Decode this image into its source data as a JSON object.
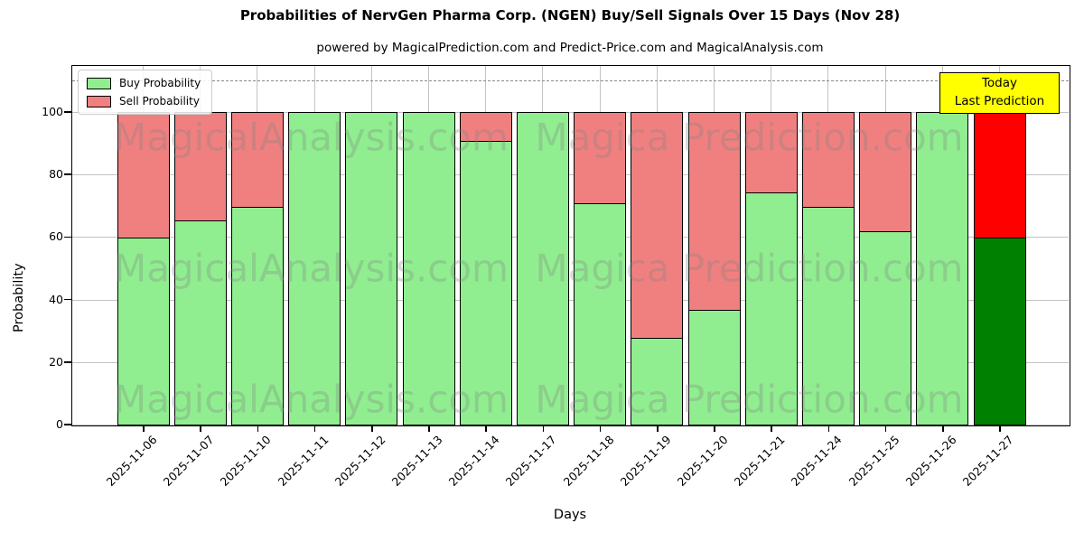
{
  "chart_data": {
    "type": "bar",
    "stacked": true,
    "title": "Probabilities of NervGen Pharma Corp. (NGEN) Buy/Sell Signals Over 15 Days (Nov 28)",
    "subtitle": "powered by MagicalPrediction.com and Predict-Price.com and MagicalAnalysis.com",
    "xlabel": "Days",
    "ylabel": "Probability",
    "ylim": [
      0,
      114.7
    ],
    "yticks": [
      0,
      20,
      40,
      60,
      80,
      100
    ],
    "dashed_line_y": 110,
    "grid": true,
    "legend_position": "upper left",
    "categories": [
      "2025-11-06",
      "2025-11-07",
      "2025-11-10",
      "2025-11-11",
      "2025-11-12",
      "2025-11-13",
      "2025-11-14",
      "2025-11-17",
      "2025-11-18",
      "2025-11-19",
      "2025-11-20",
      "2025-11-21",
      "2025-11-24",
      "2025-11-25",
      "2025-11-26",
      "2025-11-27"
    ],
    "series": [
      {
        "name": "Buy Probability",
        "values": [
          60,
          65.5,
          70,
          100,
          100,
          100,
          91,
          100,
          71,
          28,
          37,
          74.5,
          70,
          62,
          100,
          60
        ]
      },
      {
        "name": "Sell Probability",
        "values": [
          40,
          34.5,
          30,
          0,
          0,
          0,
          9,
          0,
          29,
          72,
          63,
          25.5,
          30,
          38,
          0,
          40
        ]
      }
    ],
    "last_bar_highlight": "Today / Last Prediction bar uses dark green and bright red"
  },
  "legend": {
    "items": [
      {
        "label": "Buy Probability",
        "color": "#90EE90"
      },
      {
        "label": "Sell Probability",
        "color": "#F08080"
      }
    ]
  },
  "annotation_box": {
    "line1": "Today",
    "line2": "Last Prediction",
    "bg": "#FFFF00"
  },
  "watermarks": {
    "left": "MagicalAnalysis.com",
    "right": "Magica Prediction.com"
  },
  "colors": {
    "buy": "#90EE90",
    "sell": "#F08080",
    "buy_last": "#008000",
    "sell_last": "#FF0000",
    "grid": "#c3c3c3",
    "dashed": "#8a8a8a",
    "annotation_bg": "#FFFF00"
  }
}
